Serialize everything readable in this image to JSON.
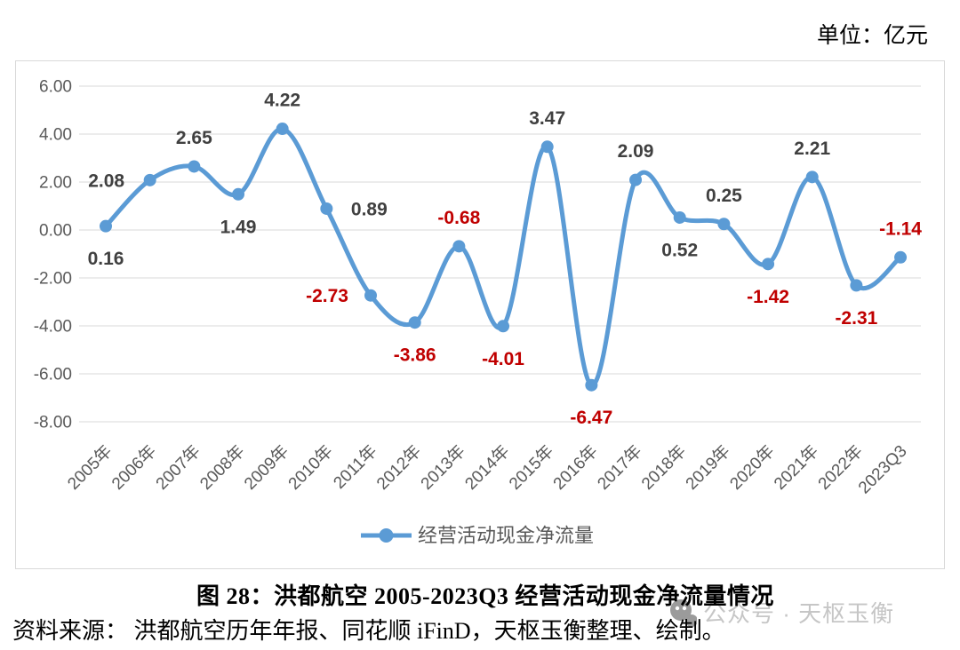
{
  "unit_label": "单位：亿元",
  "title": "图 28：洪都航空 2005-2023Q3 经营活动现金净流量情况",
  "source": "资料来源： 洪都航空历年年报、同花顺 iFinD，天枢玉衡整理、绘制。",
  "watermark": {
    "text": "公众号 · 天枢玉衡"
  },
  "chart_data": {
    "type": "line",
    "title": "",
    "categories": [
      "2005年",
      "2006年",
      "2007年",
      "2008年",
      "2009年",
      "2010年",
      "2011年",
      "2012年",
      "2013年",
      "2014年",
      "2015年",
      "2016年",
      "2017年",
      "2018年",
      "2019年",
      "2020年",
      "2021年",
      "2022年",
      "2023Q3"
    ],
    "series": [
      {
        "name": "经营活动现金净流量",
        "color": "#5B9BD5",
        "values": [
          0.16,
          2.08,
          2.65,
          1.49,
          4.22,
          0.89,
          -2.73,
          -3.86,
          -0.68,
          -4.01,
          3.47,
          -6.47,
          2.09,
          0.52,
          0.25,
          -1.42,
          2.21,
          -2.31,
          -1.14
        ]
      }
    ],
    "ylim": [
      -8,
      6
    ],
    "ytick_step": 2,
    "ytick_labels": [
      "6.00",
      "4.00",
      "2.00",
      "0.00",
      "-2.00",
      "-4.00",
      "-6.00",
      "-8.00"
    ],
    "grid": true,
    "smooth": true,
    "legend_position": "bottom",
    "label_color_positive": "#404040",
    "label_color_negative": "#C00000",
    "label_placement": [
      "below",
      "left",
      "above",
      "below",
      "above",
      "right",
      "left",
      "below",
      "above",
      "below",
      "above",
      "below",
      "above",
      "below",
      "above",
      "below",
      "above",
      "below",
      "above"
    ]
  }
}
